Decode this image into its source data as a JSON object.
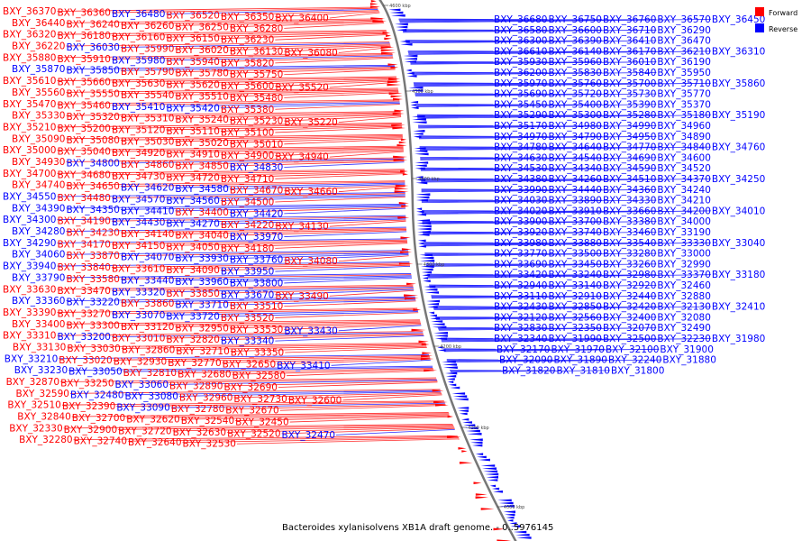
{
  "title": "Bacteroides xylanisolvens XB1A draft genome. - 0..5976145",
  "colors": {
    "forward": "#ff0000",
    "reverse": "#0000ff",
    "line_forward": "#ff2a2a",
    "line_reverse": "#2a2aff",
    "backbone": "#777777"
  },
  "legend": [
    {
      "label": "Forward",
      "color": "#ff0000"
    },
    {
      "label": "Reverse",
      "color": "#0000ff"
    }
  ],
  "ticks": [
    "4600 kbp",
    "4500 kbp",
    "4400 kbp",
    "4300 kbp",
    "4200 kbp",
    "4100 kbp",
    "4000 kbp"
  ],
  "left_labels": [
    {
      "t": "BXY_36370",
      "c": "f"
    },
    {
      "t": "BXY_36360",
      "c": "f"
    },
    {
      "t": "BXY_36480",
      "c": "r"
    },
    {
      "t": "BXY_36520",
      "c": "f"
    },
    {
      "t": "BXY_36350",
      "c": "f"
    },
    {
      "t": "BXY_36400",
      "c": "f"
    },
    {
      "t": "BXY_36440",
      "c": "f"
    },
    {
      "t": "BXY_36240",
      "c": "f"
    },
    {
      "t": "BXY_36260",
      "c": "f"
    },
    {
      "t": "BXY_36250",
      "c": "f"
    },
    {
      "t": "BXY_36280",
      "c": "f"
    },
    {
      "t": "BXY_36320",
      "c": "f"
    },
    {
      "t": "BXY_36180",
      "c": "f"
    },
    {
      "t": "BXY_36160",
      "c": "f"
    },
    {
      "t": "BXY_36150",
      "c": "f"
    },
    {
      "t": "BXY_36230",
      "c": "f"
    },
    {
      "t": "BXY_36220",
      "c": "f"
    },
    {
      "t": "BXY_36030",
      "c": "r"
    },
    {
      "t": "BXY_35990",
      "c": "f"
    },
    {
      "t": "BXY_36020",
      "c": "f"
    },
    {
      "t": "BXY_36130",
      "c": "f"
    },
    {
      "t": "BXY_36080",
      "c": "f"
    },
    {
      "t": "BXY_35880",
      "c": "f"
    },
    {
      "t": "BXY_35910",
      "c": "f"
    },
    {
      "t": "BXY_35980",
      "c": "r"
    },
    {
      "t": "BXY_35940",
      "c": "f"
    },
    {
      "t": "BXY_35820",
      "c": "f"
    },
    {
      "t": "BXY_35870",
      "c": "r"
    },
    {
      "t": "BXY_35850",
      "c": "r"
    },
    {
      "t": "BXY_35790",
      "c": "f"
    },
    {
      "t": "BXY_35780",
      "c": "f"
    },
    {
      "t": "BXY_35750",
      "c": "f"
    },
    {
      "t": "BXY_35610",
      "c": "f"
    },
    {
      "t": "BXY_35660",
      "c": "f"
    },
    {
      "t": "BXY_35630",
      "c": "f"
    },
    {
      "t": "BXY_35620",
      "c": "f"
    },
    {
      "t": "BXY_35600",
      "c": "f"
    },
    {
      "t": "BXY_35520",
      "c": "f"
    },
    {
      "t": "BXY_35560",
      "c": "f"
    },
    {
      "t": "BXY_35550",
      "c": "f"
    },
    {
      "t": "BXY_35540",
      "c": "f"
    },
    {
      "t": "BXY_35510",
      "c": "f"
    },
    {
      "t": "BXY_35480",
      "c": "f"
    },
    {
      "t": "BXY_35470",
      "c": "f"
    },
    {
      "t": "BXY_35460",
      "c": "f"
    },
    {
      "t": "BXY_35410",
      "c": "r"
    },
    {
      "t": "BXY_35420",
      "c": "r"
    },
    {
      "t": "BXY_35380",
      "c": "f"
    },
    {
      "t": "BXY_35330",
      "c": "f"
    },
    {
      "t": "BXY_35320",
      "c": "f"
    },
    {
      "t": "BXY_35310",
      "c": "f"
    },
    {
      "t": "BXY_35240",
      "c": "f"
    },
    {
      "t": "BXY_35230",
      "c": "f"
    },
    {
      "t": "BXY_35220",
      "c": "f"
    },
    {
      "t": "BXY_35210",
      "c": "f"
    },
    {
      "t": "BXY_35200",
      "c": "f"
    },
    {
      "t": "BXY_35120",
      "c": "f"
    },
    {
      "t": "BXY_35110",
      "c": "f"
    },
    {
      "t": "BXY_35100",
      "c": "f"
    },
    {
      "t": "BXY_35090",
      "c": "f"
    },
    {
      "t": "BXY_35080",
      "c": "f"
    },
    {
      "t": "BXY_35030",
      "c": "f"
    },
    {
      "t": "BXY_35020",
      "c": "f"
    },
    {
      "t": "BXY_35010",
      "c": "f"
    },
    {
      "t": "BXY_35000",
      "c": "f"
    },
    {
      "t": "BXY_35040",
      "c": "f"
    },
    {
      "t": "BXY_34920",
      "c": "f"
    },
    {
      "t": "BXY_34910",
      "c": "f"
    },
    {
      "t": "BXY_34900",
      "c": "f"
    },
    {
      "t": "BXY_34940",
      "c": "f"
    },
    {
      "t": "BXY_34930",
      "c": "f"
    },
    {
      "t": "BXY_34800",
      "c": "r"
    },
    {
      "t": "BXY_34860",
      "c": "f"
    },
    {
      "t": "BXY_34850",
      "c": "f"
    },
    {
      "t": "BXY_34830",
      "c": "r"
    },
    {
      "t": "BXY_34700",
      "c": "f"
    },
    {
      "t": "BXY_34680",
      "c": "f"
    },
    {
      "t": "BXY_34730",
      "c": "f"
    },
    {
      "t": "BXY_34720",
      "c": "f"
    },
    {
      "t": "BXY_34710",
      "c": "f"
    },
    {
      "t": "BXY_34740",
      "c": "f"
    },
    {
      "t": "BXY_34650",
      "c": "f"
    },
    {
      "t": "BXY_34620",
      "c": "r"
    },
    {
      "t": "BXY_34580",
      "c": "r"
    },
    {
      "t": "BXY_34670",
      "c": "f"
    },
    {
      "t": "BXY_34660",
      "c": "f"
    },
    {
      "t": "BXY_34550",
      "c": "r"
    },
    {
      "t": "BXY_34480",
      "c": "f"
    },
    {
      "t": "BXY_34570",
      "c": "r"
    },
    {
      "t": "BXY_34560",
      "c": "r"
    },
    {
      "t": "BXY_34500",
      "c": "f"
    },
    {
      "t": "BXY_34390",
      "c": "r"
    },
    {
      "t": "BXY_34350",
      "c": "r"
    },
    {
      "t": "BXY_34410",
      "c": "r"
    },
    {
      "t": "BXY_34400",
      "c": "f"
    },
    {
      "t": "BXY_34420",
      "c": "r"
    },
    {
      "t": "BXY_34300",
      "c": "r"
    },
    {
      "t": "BXY_34190",
      "c": "f"
    },
    {
      "t": "BXY_34430",
      "c": "r"
    },
    {
      "t": "BXY_34270",
      "c": "r"
    },
    {
      "t": "BXY_34220",
      "c": "f"
    },
    {
      "t": "BXY_34130",
      "c": "f"
    },
    {
      "t": "BXY_34280",
      "c": "r"
    },
    {
      "t": "BXY_34230",
      "c": "f"
    },
    {
      "t": "BXY_34140",
      "c": "f"
    },
    {
      "t": "BXY_34040",
      "c": "f"
    },
    {
      "t": "BXY_33970",
      "c": "r"
    },
    {
      "t": "BXY_34290",
      "c": "r"
    },
    {
      "t": "BXY_34170",
      "c": "f"
    },
    {
      "t": "BXY_34150",
      "c": "f"
    },
    {
      "t": "BXY_34050",
      "c": "f"
    },
    {
      "t": "BXY_34180",
      "c": "f"
    },
    {
      "t": "BXY_34060",
      "c": "r"
    },
    {
      "t": "BXY_33870",
      "c": "f"
    },
    {
      "t": "BXY_34070",
      "c": "r"
    },
    {
      "t": "BXY_33930",
      "c": "r"
    },
    {
      "t": "BXY_33760",
      "c": "r"
    },
    {
      "t": "BXY_34080",
      "c": "f"
    },
    {
      "t": "BXY_33940",
      "c": "r"
    },
    {
      "t": "BXY_33840",
      "c": "f"
    },
    {
      "t": "BXY_33610",
      "c": "f"
    },
    {
      "t": "BXY_34090",
      "c": "f"
    },
    {
      "t": "BXY_33950",
      "c": "r"
    },
    {
      "t": "BXY_33790",
      "c": "r"
    },
    {
      "t": "BXY_33580",
      "c": "f"
    },
    {
      "t": "BXY_33440",
      "c": "r"
    },
    {
      "t": "BXY_33960",
      "c": "r"
    },
    {
      "t": "BXY_33800",
      "c": "r"
    },
    {
      "t": "BXY_33630",
      "c": "f"
    },
    {
      "t": "BXY_33470",
      "c": "f"
    },
    {
      "t": "BXY_33320",
      "c": "r"
    },
    {
      "t": "BXY_33850",
      "c": "f"
    },
    {
      "t": "BXY_33670",
      "c": "r"
    },
    {
      "t": "BXY_33490",
      "c": "f"
    },
    {
      "t": "BXY_33360",
      "c": "r"
    },
    {
      "t": "BXY_33220",
      "c": "r"
    },
    {
      "t": "BXY_33860",
      "c": "f"
    },
    {
      "t": "BXY_33710",
      "c": "r"
    },
    {
      "t": "BXY_33510",
      "c": "f"
    },
    {
      "t": "BXY_33390",
      "c": "f"
    },
    {
      "t": "BXY_33270",
      "c": "f"
    },
    {
      "t": "BXY_33070",
      "c": "r"
    },
    {
      "t": "BXY_33720",
      "c": "r"
    },
    {
      "t": "BXY_33520",
      "c": "f"
    },
    {
      "t": "BXY_33400",
      "c": "f"
    },
    {
      "t": "BXY_33300",
      "c": "f"
    },
    {
      "t": "BXY_33120",
      "c": "f"
    },
    {
      "t": "BXY_32950",
      "c": "f"
    },
    {
      "t": "BXY_33530",
      "c": "f"
    },
    {
      "t": "BXY_33430",
      "c": "r"
    },
    {
      "t": "BXY_33310",
      "c": "f"
    },
    {
      "t": "BXY_33200",
      "c": "r"
    },
    {
      "t": "BXY_33010",
      "c": "f"
    },
    {
      "t": "BXY_32820",
      "c": "f"
    },
    {
      "t": "BXY_33340",
      "c": "r"
    },
    {
      "t": "BXY_33130",
      "c": "f"
    },
    {
      "t": "BXY_33030",
      "c": "f"
    },
    {
      "t": "BXY_32860",
      "c": "f"
    },
    {
      "t": "BXY_32710",
      "c": "f"
    },
    {
      "t": "BXY_33350",
      "c": "f"
    },
    {
      "t": "BXY_33210",
      "c": "r"
    },
    {
      "t": "BXY_33020",
      "c": "f"
    },
    {
      "t": "BXY_32930",
      "c": "f"
    },
    {
      "t": "BXY_32770",
      "c": "f"
    },
    {
      "t": "BXY_32650",
      "c": "f"
    },
    {
      "t": "BXY_33410",
      "c": "r"
    },
    {
      "t": "BXY_33230",
      "c": "r"
    },
    {
      "t": "BXY_33050",
      "c": "r"
    },
    {
      "t": "BXY_32810",
      "c": "f"
    },
    {
      "t": "BXY_32680",
      "c": "f"
    },
    {
      "t": "BXY_32580",
      "c": "f"
    },
    {
      "t": "BXY_32870",
      "c": "f"
    },
    {
      "t": "BXY_33250",
      "c": "f"
    },
    {
      "t": "BXY_33060",
      "c": "r"
    },
    {
      "t": "BXY_32890",
      "c": "f"
    },
    {
      "t": "BXY_32690",
      "c": "f"
    },
    {
      "t": "BXY_32590",
      "c": "f"
    },
    {
      "t": "BXY_32480",
      "c": "r"
    },
    {
      "t": "BXY_33080",
      "c": "r"
    },
    {
      "t": "BXY_32960",
      "c": "f"
    },
    {
      "t": "BXY_32730",
      "c": "f"
    },
    {
      "t": "BXY_32600",
      "c": "f"
    },
    {
      "t": "BXY_32510",
      "c": "f"
    },
    {
      "t": "BXY_32390",
      "c": "f"
    },
    {
      "t": "BXY_33090",
      "c": "r"
    },
    {
      "t": "BXY_32780",
      "c": "f"
    },
    {
      "t": "BXY_32670",
      "c": "f"
    },
    {
      "t": "BXY_32840",
      "c": "f"
    },
    {
      "t": "BXY_32700",
      "c": "f"
    },
    {
      "t": "BXY_32620",
      "c": "f"
    },
    {
      "t": "BXY_32540",
      "c": "f"
    },
    {
      "t": "BXY_32450",
      "c": "f"
    },
    {
      "t": "BXY_32330",
      "c": "f"
    },
    {
      "t": "BXY_32900",
      "c": "f"
    },
    {
      "t": "BXY_32720",
      "c": "f"
    },
    {
      "t": "BXY_32630",
      "c": "f"
    },
    {
      "t": "BXY_32520",
      "c": "f"
    },
    {
      "t": "BXY_32470",
      "c": "r"
    },
    {
      "t": "BXY_32280",
      "c": "f"
    },
    {
      "t": "BXY_32740",
      "c": "f"
    },
    {
      "t": "BXY_32640",
      "c": "f"
    },
    {
      "t": "BXY_32530",
      "c": "f"
    }
  ],
  "right_labels": [
    {
      "t": "BXY_36680",
      "c": "r"
    },
    {
      "t": "BXY_36750",
      "c": "r"
    },
    {
      "t": "BXY_36760",
      "c": "r"
    },
    {
      "t": "BXY_36570",
      "c": "r"
    },
    {
      "t": "BXY_36450",
      "c": "r"
    },
    {
      "t": "BXY_36580",
      "c": "r"
    },
    {
      "t": "BXY_36600",
      "c": "r"
    },
    {
      "t": "BXY_36710",
      "c": "r"
    },
    {
      "t": "BXY_36290",
      "c": "r"
    },
    {
      "t": "BXY_36300",
      "c": "r"
    },
    {
      "t": "BXY_36390",
      "c": "r"
    },
    {
      "t": "BXY_36410",
      "c": "r"
    },
    {
      "t": "BXY_36470",
      "c": "r"
    },
    {
      "t": "BXY_36610",
      "c": "r"
    },
    {
      "t": "BXY_36140",
      "c": "r"
    },
    {
      "t": "BXY_36170",
      "c": "r"
    },
    {
      "t": "BXY_36210",
      "c": "r"
    },
    {
      "t": "BXY_36310",
      "c": "r"
    },
    {
      "t": "BXY_35930",
      "c": "r"
    },
    {
      "t": "BXY_35960",
      "c": "r"
    },
    {
      "t": "BXY_36010",
      "c": "r"
    },
    {
      "t": "BXY_36190",
      "c": "r"
    },
    {
      "t": "BXY_36200",
      "c": "r"
    },
    {
      "t": "BXY_35830",
      "c": "r"
    },
    {
      "t": "BXY_35840",
      "c": "r"
    },
    {
      "t": "BXY_35950",
      "c": "r"
    },
    {
      "t": "BXY_35970",
      "c": "r"
    },
    {
      "t": "BXY_35760",
      "c": "r"
    },
    {
      "t": "BXY_35700",
      "c": "r"
    },
    {
      "t": "BXY_35710",
      "c": "r"
    },
    {
      "t": "BXY_35860",
      "c": "r"
    },
    {
      "t": "BXY_35690",
      "c": "r"
    },
    {
      "t": "BXY_35720",
      "c": "r"
    },
    {
      "t": "BXY_35730",
      "c": "r"
    },
    {
      "t": "BXY_35770",
      "c": "r"
    },
    {
      "t": "BXY_35450",
      "c": "r"
    },
    {
      "t": "BXY_35400",
      "c": "r"
    },
    {
      "t": "BXY_35390",
      "c": "r"
    },
    {
      "t": "BXY_35370",
      "c": "r"
    },
    {
      "t": "BXY_35290",
      "c": "r"
    },
    {
      "t": "BXY_35300",
      "c": "r"
    },
    {
      "t": "BXY_35280",
      "c": "r"
    },
    {
      "t": "BXY_35180",
      "c": "r"
    },
    {
      "t": "BXY_35190",
      "c": "r"
    },
    {
      "t": "BXY_35170",
      "c": "r"
    },
    {
      "t": "BXY_34980",
      "c": "r"
    },
    {
      "t": "BXY_34990",
      "c": "r"
    },
    {
      "t": "BXY_34960",
      "c": "r"
    },
    {
      "t": "BXY_34970",
      "c": "r"
    },
    {
      "t": "BXY_34790",
      "c": "r"
    },
    {
      "t": "BXY_34950",
      "c": "r"
    },
    {
      "t": "BXY_34890",
      "c": "r"
    },
    {
      "t": "BXY_34780",
      "c": "r"
    },
    {
      "t": "BXY_34640",
      "c": "r"
    },
    {
      "t": "BXY_34770",
      "c": "r"
    },
    {
      "t": "BXY_34840",
      "c": "r"
    },
    {
      "t": "BXY_34760",
      "c": "r"
    },
    {
      "t": "BXY_34630",
      "c": "r"
    },
    {
      "t": "BXY_34540",
      "c": "r"
    },
    {
      "t": "BXY_34690",
      "c": "r"
    },
    {
      "t": "BXY_34600",
      "c": "r"
    },
    {
      "t": "BXY_34530",
      "c": "r"
    },
    {
      "t": "BXY_34340",
      "c": "r"
    },
    {
      "t": "BXY_34590",
      "c": "r"
    },
    {
      "t": "BXY_34520",
      "c": "r"
    },
    {
      "t": "BXY_34380",
      "c": "r"
    },
    {
      "t": "BXY_34260",
      "c": "r"
    },
    {
      "t": "BXY_34510",
      "c": "r"
    },
    {
      "t": "BXY_34370",
      "c": "r"
    },
    {
      "t": "BXY_34250",
      "c": "r"
    },
    {
      "t": "BXY_33990",
      "c": "r"
    },
    {
      "t": "BXY_34440",
      "c": "r"
    },
    {
      "t": "BXY_34360",
      "c": "r"
    },
    {
      "t": "BXY_34240",
      "c": "r"
    },
    {
      "t": "BXY_34030",
      "c": "r"
    },
    {
      "t": "BXY_33890",
      "c": "r"
    },
    {
      "t": "BXY_34330",
      "c": "r"
    },
    {
      "t": "BXY_34210",
      "c": "r"
    },
    {
      "t": "BXY_34020",
      "c": "r"
    },
    {
      "t": "BXY_33910",
      "c": "r"
    },
    {
      "t": "BXY_33660",
      "c": "r"
    },
    {
      "t": "BXY_34200",
      "c": "r"
    },
    {
      "t": "BXY_34010",
      "c": "r"
    },
    {
      "t": "BXY_33900",
      "c": "r"
    },
    {
      "t": "BXY_33700",
      "c": "r"
    },
    {
      "t": "BXY_33380",
      "c": "r"
    },
    {
      "t": "BXY_34000",
      "c": "r"
    },
    {
      "t": "BXY_33920",
      "c": "r"
    },
    {
      "t": "BXY_33740",
      "c": "r"
    },
    {
      "t": "BXY_33460",
      "c": "r"
    },
    {
      "t": "BXY_33190",
      "c": "r"
    },
    {
      "t": "BXY_33980",
      "c": "r"
    },
    {
      "t": "BXY_33880",
      "c": "r"
    },
    {
      "t": "BXY_33540",
      "c": "r"
    },
    {
      "t": "BXY_33330",
      "c": "r"
    },
    {
      "t": "BXY_33040",
      "c": "r"
    },
    {
      "t": "BXY_33770",
      "c": "r"
    },
    {
      "t": "BXY_33500",
      "c": "r"
    },
    {
      "t": "BXY_33280",
      "c": "r"
    },
    {
      "t": "BXY_33000",
      "c": "r"
    },
    {
      "t": "BXY_33690",
      "c": "r"
    },
    {
      "t": "BXY_33450",
      "c": "r"
    },
    {
      "t": "BXY_33260",
      "c": "r"
    },
    {
      "t": "BXY_32990",
      "c": "r"
    },
    {
      "t": "BXY_33420",
      "c": "r"
    },
    {
      "t": "BXY_33240",
      "c": "r"
    },
    {
      "t": "BXY_32980",
      "c": "r"
    },
    {
      "t": "BXY_33370",
      "c": "r"
    },
    {
      "t": "BXY_33180",
      "c": "r"
    },
    {
      "t": "BXY_32940",
      "c": "r"
    },
    {
      "t": "BXY_33140",
      "c": "r"
    },
    {
      "t": "BXY_32920",
      "c": "r"
    },
    {
      "t": "BXY_32460",
      "c": "r"
    },
    {
      "t": "BXY_33110",
      "c": "r"
    },
    {
      "t": "BXY_32910",
      "c": "r"
    },
    {
      "t": "BXY_32440",
      "c": "r"
    },
    {
      "t": "BXY_32880",
      "c": "r"
    },
    {
      "t": "BXY_32430",
      "c": "r"
    },
    {
      "t": "BXY_32850",
      "c": "r"
    },
    {
      "t": "BXY_32420",
      "c": "r"
    },
    {
      "t": "BXY_32130",
      "c": "r"
    },
    {
      "t": "BXY_32410",
      "c": "r"
    },
    {
      "t": "BXY_32120",
      "c": "r"
    },
    {
      "t": "BXY_32560",
      "c": "r"
    },
    {
      "t": "BXY_32400",
      "c": "r"
    },
    {
      "t": "BXY_32080",
      "c": "r"
    },
    {
      "t": "BXY_32830",
      "c": "r"
    },
    {
      "t": "BXY_32350",
      "c": "r"
    },
    {
      "t": "BXY_32070",
      "c": "r"
    },
    {
      "t": "BXY_32490",
      "c": "r"
    },
    {
      "t": "BXY_32340",
      "c": "r"
    },
    {
      "t": "BXY_31990",
      "c": "r"
    },
    {
      "t": "BXY_32500",
      "c": "r"
    },
    {
      "t": "BXY_32230",
      "c": "r"
    },
    {
      "t": "BXY_31980",
      "c": "r"
    },
    {
      "t": "BXY_32170",
      "c": "r"
    },
    {
      "t": "BXY_31970",
      "c": "r"
    },
    {
      "t": "BXY_32100",
      "c": "r"
    },
    {
      "t": "BXY_31900",
      "c": "r"
    },
    {
      "t": "BXY_32090",
      "c": "r"
    },
    {
      "t": "BXY_31890",
      "c": "r"
    },
    {
      "t": "BXY_32240",
      "c": "r"
    },
    {
      "t": "BXY_31880",
      "c": "r"
    },
    {
      "t": "BXY_31820",
      "c": "r"
    },
    {
      "t": "BXY_31810",
      "c": "r"
    },
    {
      "t": "BXY_31800",
      "c": "r"
    }
  ]
}
